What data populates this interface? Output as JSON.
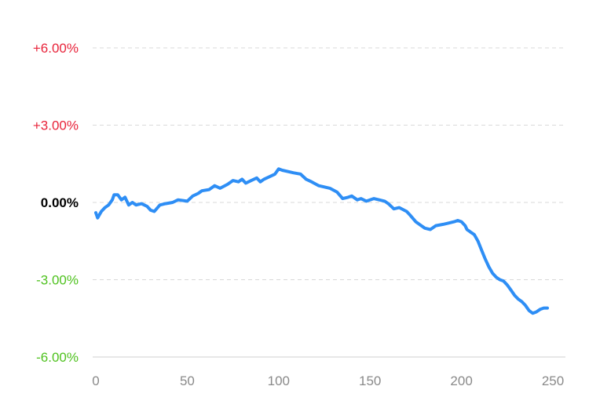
{
  "chart_data": {
    "type": "line",
    "title": "",
    "xlabel": "",
    "ylabel": "",
    "xlim": [
      0,
      250
    ],
    "ylim": [
      -6,
      6
    ],
    "x_ticks": [
      0,
      50,
      100,
      150,
      200,
      250
    ],
    "x_tick_labels": [
      "0",
      "50",
      "100",
      "150",
      "200",
      "250"
    ],
    "y_ticks": [
      6,
      3,
      0,
      -3,
      -6
    ],
    "y_tick_labels": [
      "+6.00%",
      "+3.00%",
      "0.00%",
      "-3.00%",
      "-6.00%"
    ],
    "grid": true,
    "colors": {
      "line": "#2e8ef5",
      "positive_label": "#e8233a",
      "zero_label": "#000000",
      "negative_label": "#4fc21f",
      "axis_label": "#8a8a8a"
    },
    "series": [
      {
        "x": [
          0,
          1,
          3,
          5,
          7,
          9,
          10,
          12,
          14,
          16,
          18,
          20,
          22,
          25,
          28,
          30,
          32,
          35,
          38,
          42,
          45,
          50,
          53,
          56,
          58,
          62,
          65,
          68,
          72,
          75,
          78,
          80,
          82,
          85,
          88,
          90,
          92,
          95,
          98,
          100,
          102,
          105,
          108,
          112,
          115,
          118,
          122,
          125,
          128,
          132,
          135,
          138,
          140,
          143,
          145,
          148,
          150,
          152,
          155,
          158,
          160,
          163,
          166,
          170,
          172,
          175,
          178,
          180,
          183,
          186,
          190,
          193,
          196,
          198,
          200,
          202,
          203,
          205,
          207,
          209,
          211,
          213,
          215,
          217,
          219,
          221,
          223,
          225,
          227,
          229,
          231,
          233,
          235,
          237,
          239,
          241,
          243,
          245,
          247
        ],
        "y": [
          -0.4,
          -0.6,
          -0.35,
          -0.2,
          -0.1,
          0.1,
          0.3,
          0.3,
          0.1,
          0.2,
          -0.1,
          0.0,
          -0.1,
          -0.05,
          -0.15,
          -0.3,
          -0.35,
          -0.1,
          -0.05,
          0.0,
          0.1,
          0.05,
          0.25,
          0.35,
          0.45,
          0.5,
          0.65,
          0.55,
          0.7,
          0.85,
          0.8,
          0.9,
          0.75,
          0.85,
          0.95,
          0.8,
          0.9,
          1.0,
          1.1,
          1.3,
          1.25,
          1.2,
          1.15,
          1.1,
          0.9,
          0.8,
          0.65,
          0.6,
          0.55,
          0.4,
          0.15,
          0.2,
          0.25,
          0.1,
          0.15,
          0.05,
          0.1,
          0.15,
          0.1,
          0.05,
          -0.05,
          -0.25,
          -0.2,
          -0.35,
          -0.5,
          -0.75,
          -0.9,
          -1.0,
          -1.05,
          -0.9,
          -0.85,
          -0.8,
          -0.75,
          -0.7,
          -0.75,
          -0.9,
          -1.05,
          -1.15,
          -1.25,
          -1.5,
          -1.85,
          -2.2,
          -2.5,
          -2.75,
          -2.9,
          -3.0,
          -3.05,
          -3.2,
          -3.4,
          -3.6,
          -3.75,
          -3.85,
          -4.0,
          -4.2,
          -4.3,
          -4.25,
          -4.15,
          -4.1,
          -4.1
        ]
      }
    ]
  }
}
